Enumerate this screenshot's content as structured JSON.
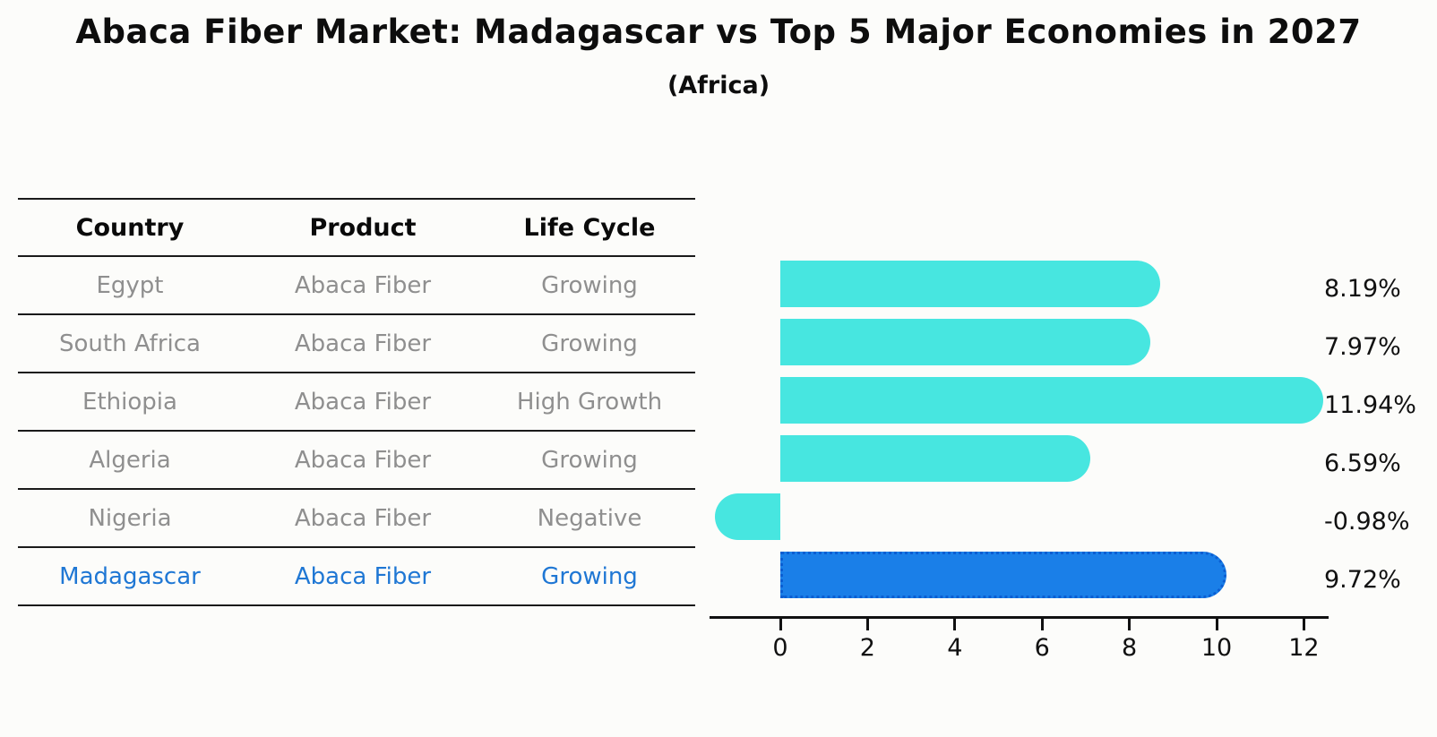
{
  "title": "Abaca Fiber Market: Madagascar vs Top 5 Major Economies in 2027",
  "subtitle": "(Africa)",
  "table": {
    "headers": [
      "Country",
      "Product",
      "Life Cycle"
    ],
    "rows": [
      {
        "country": "Egypt",
        "product": "Abaca Fiber",
        "life_cycle": "Growing",
        "highlighted": false
      },
      {
        "country": "South Africa",
        "product": "Abaca Fiber",
        "life_cycle": "Growing",
        "highlighted": false
      },
      {
        "country": "Ethiopia",
        "product": "Abaca Fiber",
        "life_cycle": "High Growth",
        "highlighted": false
      },
      {
        "country": "Algeria",
        "product": "Abaca Fiber",
        "life_cycle": "Growing",
        "highlighted": false
      },
      {
        "country": "Nigeria",
        "product": "Abaca Fiber",
        "life_cycle": "Negative",
        "highlighted": false
      },
      {
        "country": "Madagascar",
        "product": "Abaca Fiber",
        "life_cycle": "Growing",
        "highlighted": true
      }
    ]
  },
  "chart_data": {
    "type": "bar",
    "orientation": "horizontal",
    "title": "Abaca Fiber Market: Madagascar vs Top 5 Major Economies in 2027",
    "subtitle": "(Africa)",
    "categories": [
      "Egypt",
      "South Africa",
      "Ethiopia",
      "Algeria",
      "Nigeria",
      "Madagascar"
    ],
    "values": [
      8.19,
      7.97,
      11.94,
      6.59,
      -0.98,
      9.72
    ],
    "value_labels": [
      "8.19%",
      "7.97%",
      "11.94%",
      "6.59%",
      "-0.98%",
      "9.72%"
    ],
    "x_ticks": [
      0,
      2,
      4,
      6,
      8,
      10,
      12
    ],
    "x_tick_labels": [
      "0",
      "2",
      "4",
      "6",
      "8",
      "10",
      "12"
    ],
    "xlim": [
      -1.6,
      12.6
    ],
    "grid": false,
    "legend": false,
    "highlight_category": "Madagascar",
    "colors": {
      "bar": "#47e6e0",
      "highlight_bar": "#1a7fe8",
      "highlight_bar_border": "#0b5ed2",
      "axis": "#111111",
      "value_label_text": "#111111",
      "table_header_text": "#0a0a0a",
      "table_row_text": "#8f8f8f",
      "table_highlight_text": "#1f77d4"
    }
  }
}
